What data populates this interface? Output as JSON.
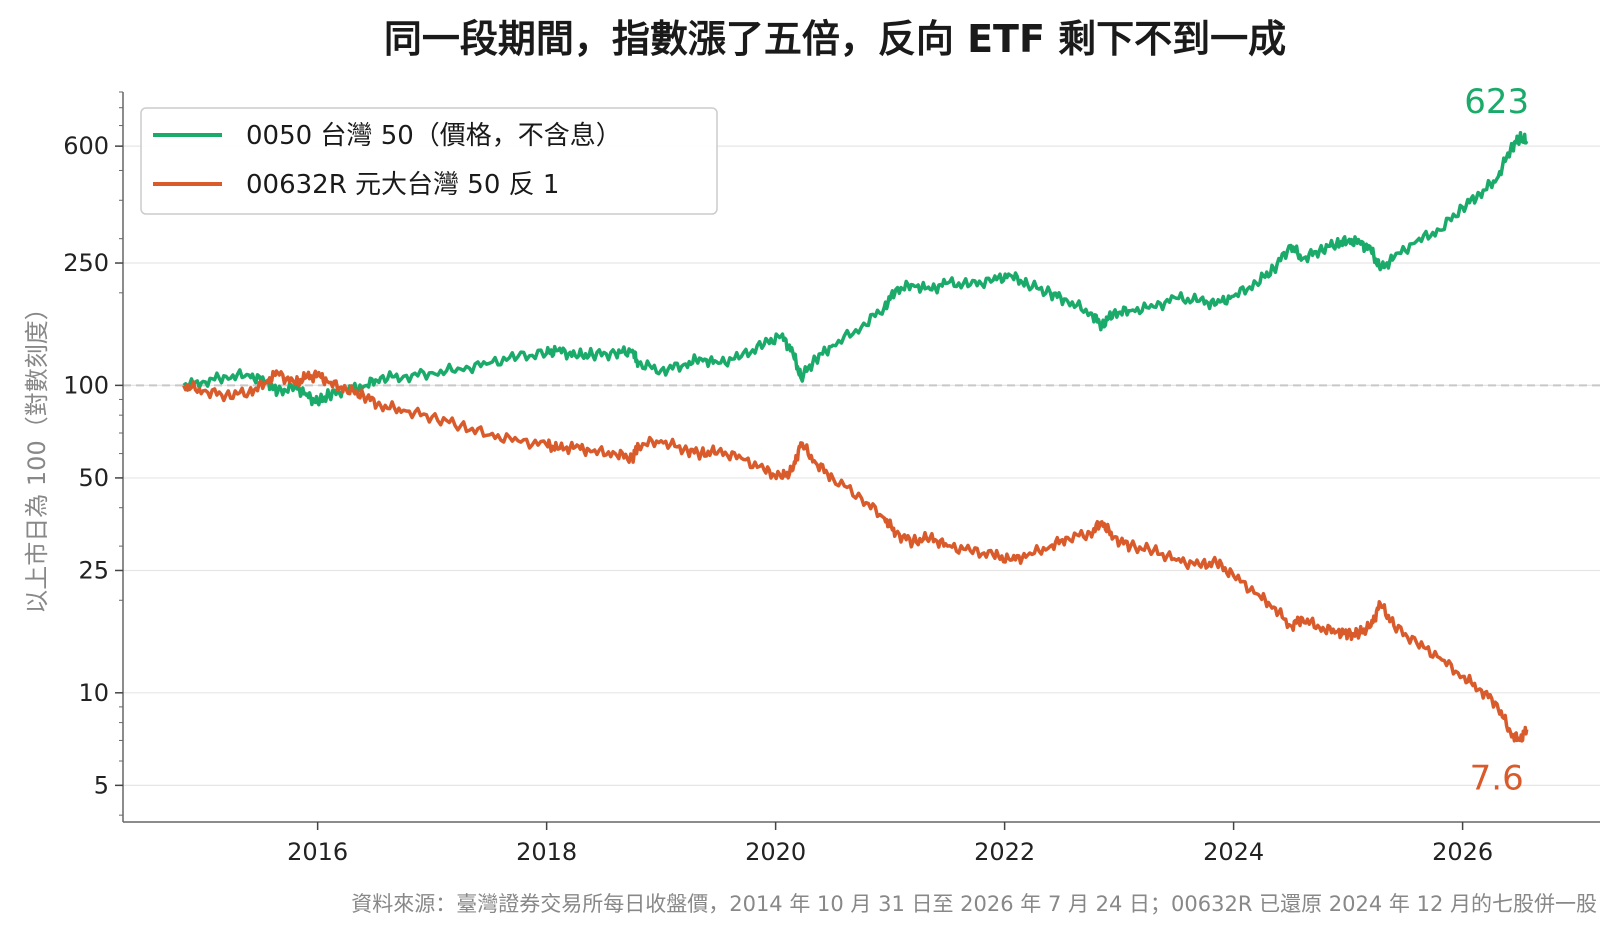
{
  "chart_data": {
    "type": "line",
    "title": "同一段期間，指數漲了五倍，反向 ETF 剩下不到一成",
    "xlabel": "",
    "ylabel": "以上市日為 100（對數刻度）",
    "source": "資料來源：臺灣證券交易所每日收盤價，2014 年 10 月 31 日至 2026 年 7 月 24 日；00632R 已還原 2024 年 12 月的七股併一股",
    "y_scale": "log",
    "ylim": [
      3.8,
      900
    ],
    "xlim": [
      2014.3,
      2027.2
    ],
    "yticks": [
      5,
      10,
      25,
      50,
      100,
      250,
      600
    ],
    "ytick_labels": [
      "5",
      "10",
      "25",
      "50",
      "100",
      "250",
      "600"
    ],
    "xticks": [
      2016,
      2018,
      2020,
      2022,
      2024,
      2026
    ],
    "xtick_labels": [
      "2016",
      "2018",
      "2020",
      "2022",
      "2024",
      "2026"
    ],
    "reference_line": 100,
    "grid": "horizontal",
    "legend_position": "top-left",
    "series": [
      {
        "name": "0050 台灣 50（價格，不含息）",
        "color": "#1aaa6a",
        "end_label": "623",
        "points": [
          [
            2014.83,
            100
          ],
          [
            2015.0,
            103
          ],
          [
            2015.2,
            107
          ],
          [
            2015.4,
            108
          ],
          [
            2015.55,
            103
          ],
          [
            2015.65,
            95
          ],
          [
            2015.8,
            99
          ],
          [
            2015.9,
            93
          ],
          [
            2016.0,
            88
          ],
          [
            2016.1,
            93
          ],
          [
            2016.25,
            97
          ],
          [
            2016.4,
            99
          ],
          [
            2016.55,
            106
          ],
          [
            2016.75,
            107
          ],
          [
            2017.0,
            110
          ],
          [
            2017.25,
            113
          ],
          [
            2017.5,
            118
          ],
          [
            2017.75,
            124
          ],
          [
            2018.0,
            127
          ],
          [
            2018.1,
            130
          ],
          [
            2018.25,
            125
          ],
          [
            2018.4,
            126
          ],
          [
            2018.6,
            127
          ],
          [
            2018.75,
            130
          ],
          [
            2018.8,
            118
          ],
          [
            2019.0,
            112
          ],
          [
            2019.2,
            117
          ],
          [
            2019.35,
            122
          ],
          [
            2019.5,
            118
          ],
          [
            2019.7,
            124
          ],
          [
            2019.9,
            136
          ],
          [
            2020.05,
            145
          ],
          [
            2020.15,
            128
          ],
          [
            2020.22,
            106
          ],
          [
            2020.35,
            122
          ],
          [
            2020.5,
            135
          ],
          [
            2020.75,
            155
          ],
          [
            2020.95,
            180
          ],
          [
            2021.05,
            205
          ],
          [
            2021.2,
            212
          ],
          [
            2021.35,
            205
          ],
          [
            2021.5,
            215
          ],
          [
            2021.7,
            212
          ],
          [
            2021.9,
            220
          ],
          [
            2022.05,
            228
          ],
          [
            2022.2,
            213
          ],
          [
            2022.4,
            200
          ],
          [
            2022.55,
            188
          ],
          [
            2022.75,
            172
          ],
          [
            2022.85,
            157
          ],
          [
            2022.95,
            172
          ],
          [
            2023.1,
            175
          ],
          [
            2023.3,
            180
          ],
          [
            2023.5,
            192
          ],
          [
            2023.7,
            188
          ],
          [
            2023.85,
            184
          ],
          [
            2024.0,
            195
          ],
          [
            2024.2,
            215
          ],
          [
            2024.35,
            240
          ],
          [
            2024.5,
            285
          ],
          [
            2024.6,
            258
          ],
          [
            2024.75,
            275
          ],
          [
            2024.9,
            290
          ],
          [
            2025.0,
            295
          ],
          [
            2025.1,
            292
          ],
          [
            2025.2,
            275
          ],
          [
            2025.28,
            238
          ],
          [
            2025.4,
            260
          ],
          [
            2025.6,
            295
          ],
          [
            2025.8,
            320
          ],
          [
            2026.0,
            380
          ],
          [
            2026.15,
            420
          ],
          [
            2026.3,
            470
          ],
          [
            2026.42,
            590
          ],
          [
            2026.5,
            640
          ],
          [
            2026.56,
            623
          ]
        ]
      },
      {
        "name": "00632R 元大台灣 50 反 1",
        "color": "#d95a2b",
        "end_label": "7.6",
        "points": [
          [
            2014.83,
            100
          ],
          [
            2015.0,
            96
          ],
          [
            2015.2,
            93
          ],
          [
            2015.4,
            95
          ],
          [
            2015.55,
            102
          ],
          [
            2015.65,
            110
          ],
          [
            2015.8,
            101
          ],
          [
            2015.9,
            106
          ],
          [
            2016.0,
            108
          ],
          [
            2016.1,
            102
          ],
          [
            2016.25,
            97
          ],
          [
            2016.4,
            93
          ],
          [
            2016.55,
            86
          ],
          [
            2016.75,
            83
          ],
          [
            2017.0,
            79
          ],
          [
            2017.25,
            74
          ],
          [
            2017.5,
            69
          ],
          [
            2017.75,
            66
          ],
          [
            2018.0,
            64
          ],
          [
            2018.1,
            62
          ],
          [
            2018.25,
            63
          ],
          [
            2018.4,
            61
          ],
          [
            2018.6,
            60
          ],
          [
            2018.75,
            58
          ],
          [
            2018.8,
            64
          ],
          [
            2019.0,
            66
          ],
          [
            2019.2,
            62
          ],
          [
            2019.35,
            60
          ],
          [
            2019.5,
            61
          ],
          [
            2019.7,
            58
          ],
          [
            2019.9,
            53
          ],
          [
            2020.05,
            50
          ],
          [
            2020.15,
            53
          ],
          [
            2020.22,
            65
          ],
          [
            2020.35,
            56
          ],
          [
            2020.5,
            50
          ],
          [
            2020.75,
            43
          ],
          [
            2020.95,
            37
          ],
          [
            2021.05,
            33
          ],
          [
            2021.2,
            31
          ],
          [
            2021.35,
            32
          ],
          [
            2021.5,
            30
          ],
          [
            2021.7,
            29
          ],
          [
            2021.9,
            28
          ],
          [
            2022.05,
            27
          ],
          [
            2022.2,
            28
          ],
          [
            2022.4,
            30
          ],
          [
            2022.55,
            32
          ],
          [
            2022.75,
            33
          ],
          [
            2022.85,
            36
          ],
          [
            2022.95,
            32
          ],
          [
            2023.1,
            30
          ],
          [
            2023.3,
            29
          ],
          [
            2023.5,
            27
          ],
          [
            2023.7,
            26
          ],
          [
            2023.85,
            26.5
          ],
          [
            2024.0,
            24
          ],
          [
            2024.2,
            21
          ],
          [
            2024.35,
            19
          ],
          [
            2024.5,
            16.5
          ],
          [
            2024.6,
            17.5
          ],
          [
            2024.75,
            16.3
          ],
          [
            2024.9,
            15.8
          ],
          [
            2025.0,
            15.5
          ],
          [
            2025.1,
            15.6
          ],
          [
            2025.2,
            16.5
          ],
          [
            2025.28,
            19.5
          ],
          [
            2025.4,
            16.5
          ],
          [
            2025.6,
            14.5
          ],
          [
            2025.8,
            13.0
          ],
          [
            2026.0,
            11.3
          ],
          [
            2026.15,
            10.3
          ],
          [
            2026.3,
            9.2
          ],
          [
            2026.42,
            7.4
          ],
          [
            2026.5,
            7.0
          ],
          [
            2026.56,
            7.6
          ]
        ]
      }
    ]
  }
}
